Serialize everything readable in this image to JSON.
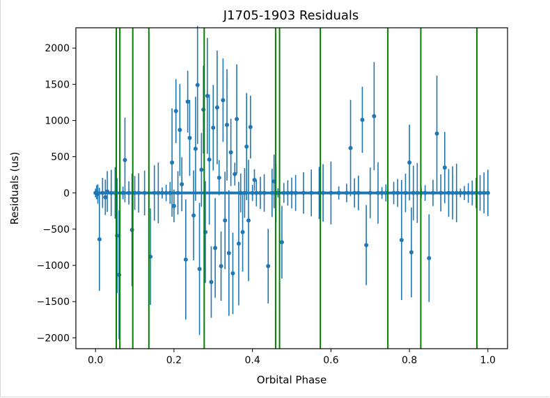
{
  "chart_data": {
    "type": "scatter",
    "title": "J1705-1903 Residuals",
    "xlabel": "Orbital Phase",
    "ylabel": "Residuals (us)",
    "xlim": [
      -0.05,
      1.05
    ],
    "ylim": [
      -2150,
      2280
    ],
    "xticks": [
      0.0,
      0.2,
      0.4,
      0.6,
      0.8,
      1.0
    ],
    "xtick_labels": [
      "0.0",
      "0.2",
      "0.4",
      "0.6",
      "0.8",
      "1.0"
    ],
    "yticks": [
      -2000,
      -1500,
      -1000,
      -500,
      0,
      500,
      1000,
      1500,
      2000
    ],
    "ytick_labels": [
      "−2000",
      "−1500",
      "−1000",
      "−500",
      "0",
      "500",
      "1000",
      "1500",
      "2000"
    ],
    "grid": false,
    "colors": {
      "points": "#1f77b4",
      "vlines": "#008000"
    },
    "vlines": [
      0.053,
      0.062,
      0.095,
      0.136,
      0.277,
      0.459,
      0.469,
      0.573,
      0.745,
      0.829,
      0.972
    ],
    "series": [
      {
        "points": [
          [
            0.0,
            0
          ],
          [
            0.003,
            10
          ],
          [
            0.006,
            -15
          ],
          [
            0.01,
            -640
          ],
          [
            0.018,
            0
          ],
          [
            0.025,
            -60
          ],
          [
            0.03,
            20
          ],
          [
            0.04,
            0
          ],
          [
            0.05,
            0
          ],
          [
            0.055,
            -590
          ],
          [
            0.06,
            -1130
          ],
          [
            0.07,
            0
          ],
          [
            0.075,
            455
          ],
          [
            0.085,
            0
          ],
          [
            0.093,
            -510
          ],
          [
            0.1,
            0
          ],
          [
            0.11,
            0
          ],
          [
            0.125,
            0
          ],
          [
            0.14,
            -880
          ],
          [
            0.15,
            0
          ],
          [
            0.16,
            0
          ],
          [
            0.17,
            0
          ],
          [
            0.18,
            0
          ],
          [
            0.19,
            0
          ],
          [
            0.195,
            420
          ],
          [
            0.2,
            -180
          ],
          [
            0.205,
            1130
          ],
          [
            0.21,
            0
          ],
          [
            0.215,
            870
          ],
          [
            0.22,
            120
          ],
          [
            0.23,
            -920
          ],
          [
            0.235,
            1260
          ],
          [
            0.24,
            760
          ],
          [
            0.25,
            -310
          ],
          [
            0.255,
            610
          ],
          [
            0.26,
            1490
          ],
          [
            0.265,
            -1050
          ],
          [
            0.27,
            320
          ],
          [
            0.275,
            1150
          ],
          [
            0.28,
            -540
          ],
          [
            0.285,
            1340
          ],
          [
            0.29,
            460
          ],
          [
            0.295,
            -1230
          ],
          [
            0.3,
            900
          ],
          [
            0.305,
            -760
          ],
          [
            0.31,
            1180
          ],
          [
            0.315,
            210
          ],
          [
            0.32,
            -1010
          ],
          [
            0.325,
            1280
          ],
          [
            0.33,
            -380
          ],
          [
            0.335,
            940
          ],
          [
            0.34,
            -830
          ],
          [
            0.345,
            560
          ],
          [
            0.35,
            -1110
          ],
          [
            0.355,
            260
          ],
          [
            0.36,
            1020
          ],
          [
            0.365,
            -700
          ],
          [
            0.37,
            0
          ],
          [
            0.375,
            -540
          ],
          [
            0.38,
            0
          ],
          [
            0.385,
            640
          ],
          [
            0.39,
            -380
          ],
          [
            0.395,
            910
          ],
          [
            0.4,
            0
          ],
          [
            0.405,
            180
          ],
          [
            0.41,
            0
          ],
          [
            0.42,
            0
          ],
          [
            0.43,
            0
          ],
          [
            0.44,
            -1010
          ],
          [
            0.45,
            0
          ],
          [
            0.455,
            160
          ],
          [
            0.46,
            0
          ],
          [
            0.465,
            0
          ],
          [
            0.475,
            -680
          ],
          [
            0.48,
            0
          ],
          [
            0.49,
            0
          ],
          [
            0.5,
            0
          ],
          [
            0.51,
            0
          ],
          [
            0.53,
            0
          ],
          [
            0.55,
            0
          ],
          [
            0.57,
            0
          ],
          [
            0.58,
            0
          ],
          [
            0.6,
            0
          ],
          [
            0.62,
            0
          ],
          [
            0.64,
            0
          ],
          [
            0.65,
            620
          ],
          [
            0.66,
            0
          ],
          [
            0.67,
            0
          ],
          [
            0.68,
            1010
          ],
          [
            0.69,
            -720
          ],
          [
            0.7,
            0
          ],
          [
            0.71,
            1060
          ],
          [
            0.72,
            0
          ],
          [
            0.73,
            0
          ],
          [
            0.74,
            0
          ],
          [
            0.76,
            0
          ],
          [
            0.77,
            0
          ],
          [
            0.78,
            -650
          ],
          [
            0.79,
            0
          ],
          [
            0.8,
            420
          ],
          [
            0.805,
            -820
          ],
          [
            0.81,
            0
          ],
          [
            0.82,
            0
          ],
          [
            0.83,
            0
          ],
          [
            0.84,
            0
          ],
          [
            0.85,
            -900
          ],
          [
            0.86,
            0
          ],
          [
            0.87,
            820
          ],
          [
            0.88,
            0
          ],
          [
            0.89,
            350
          ],
          [
            0.9,
            0
          ],
          [
            0.91,
            0
          ],
          [
            0.92,
            0
          ],
          [
            0.93,
            0
          ],
          [
            0.94,
            0
          ],
          [
            0.95,
            0
          ],
          [
            0.96,
            0
          ],
          [
            0.97,
            0
          ],
          [
            0.98,
            0
          ],
          [
            0.99,
            0
          ],
          [
            1.0,
            0
          ]
        ]
      }
    ]
  }
}
